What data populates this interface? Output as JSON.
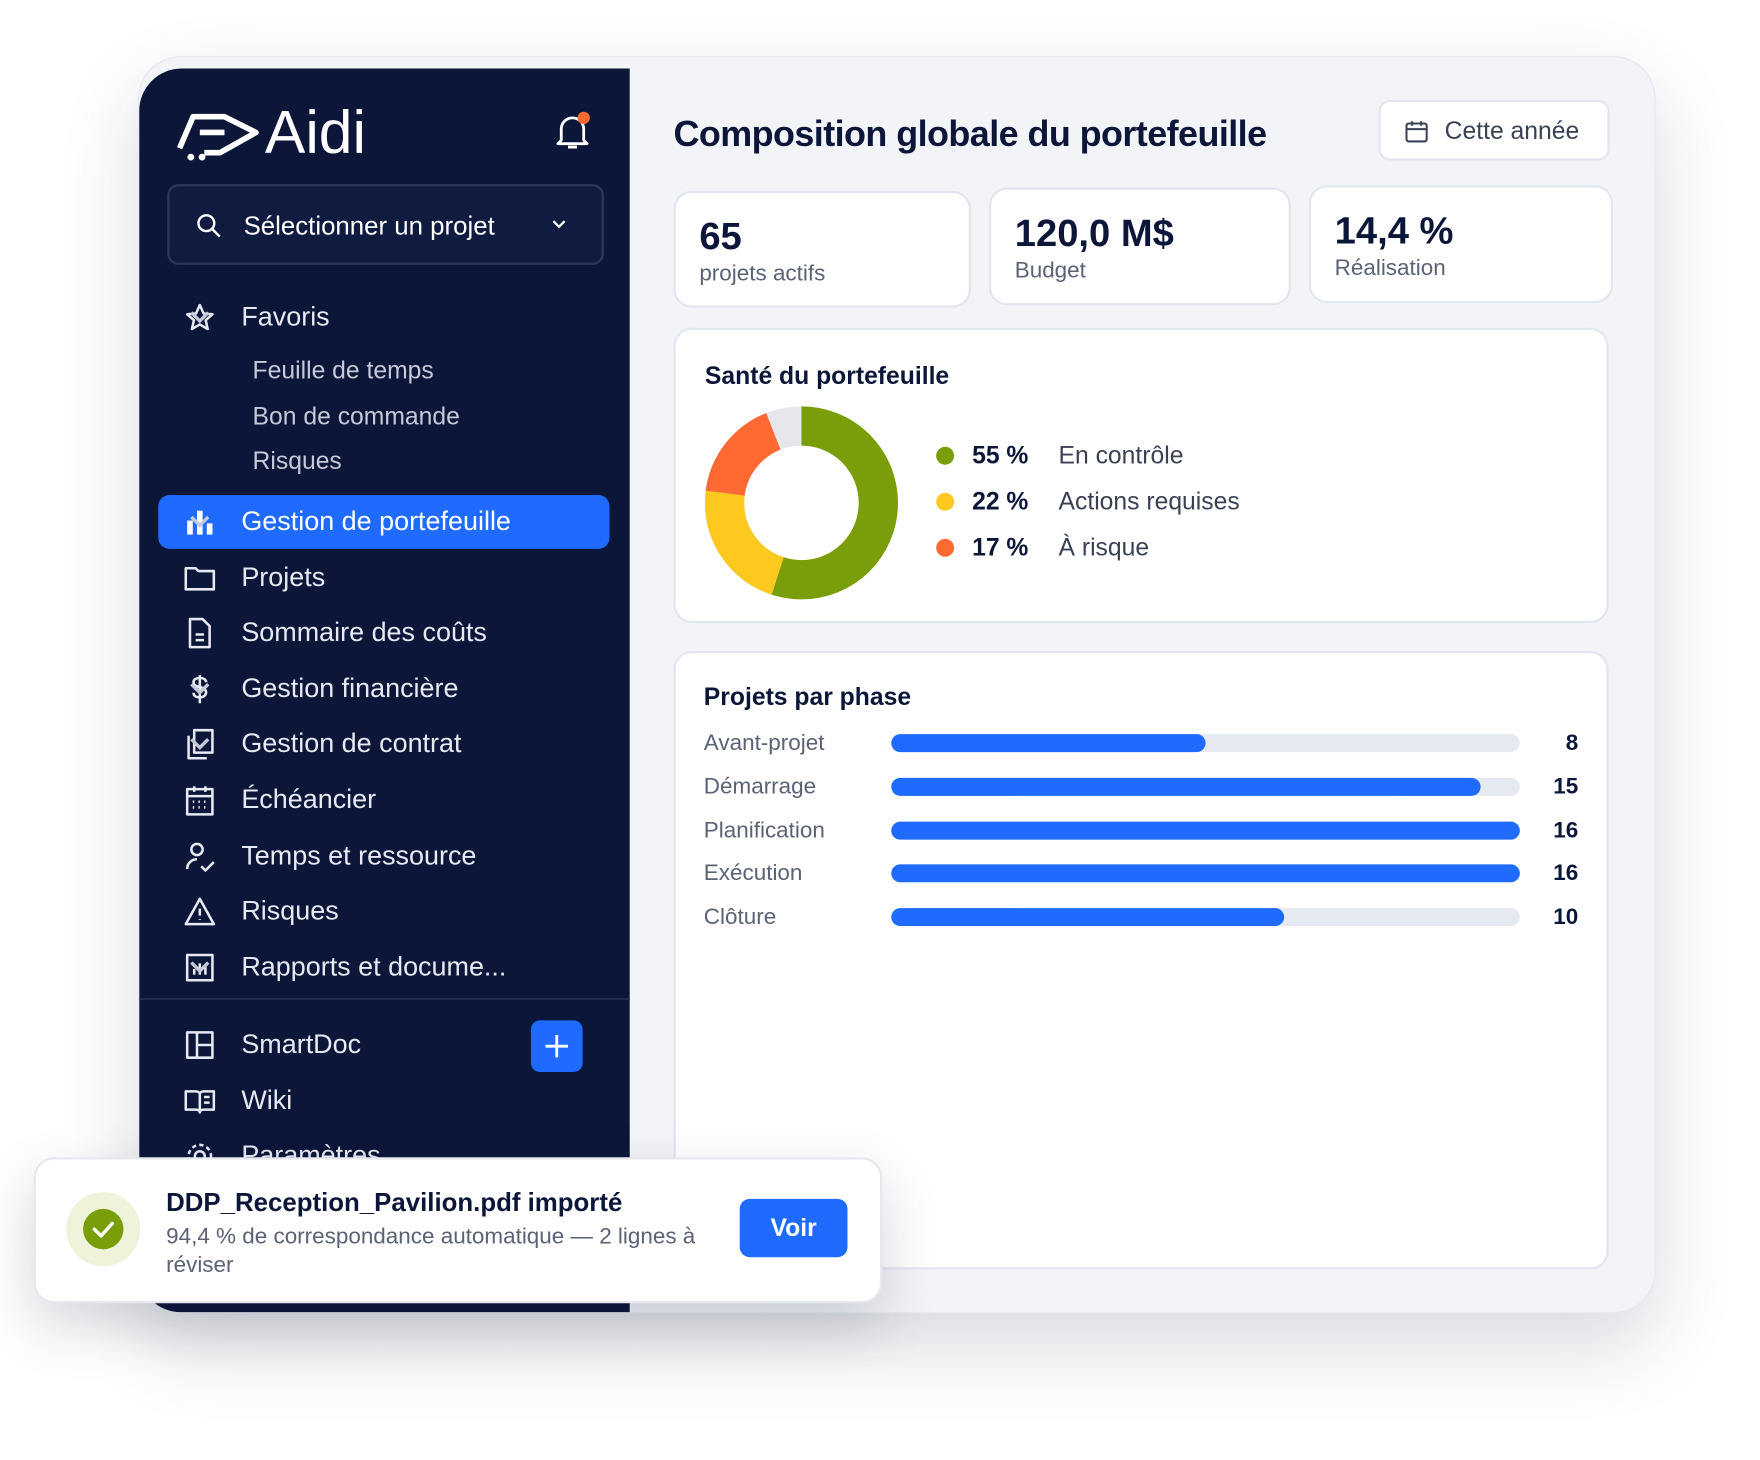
{
  "brand": "Aidi",
  "sidebar": {
    "search": "Sélectionner un projet",
    "favorites": {
      "label": "Favoris",
      "items": [
        "Feuille de temps",
        "Bon de commande",
        "Risques"
      ]
    },
    "nav": [
      "Gestion de portefeuille",
      "Projets",
      "Sommaire des coûts",
      "Gestion financière",
      "Gestion de contrat",
      "Échéancier",
      "Temps et ressource",
      "Risques",
      "Rapports et docume..."
    ],
    "tools": [
      "SmartDoc",
      "Wiki",
      "Paramètres"
    ]
  },
  "header": {
    "title": "Composition globale du portefeuille",
    "period": "Cette année"
  },
  "kpis": [
    {
      "value": "65",
      "label": "projets actifs"
    },
    {
      "value": "120,0 M$",
      "label": "Budget"
    },
    {
      "value": "14,4 %",
      "label": "Réalisation"
    }
  ],
  "health": {
    "title": "Santé du portefeuille",
    "segments": [
      {
        "value": 55,
        "label": "55 %",
        "name": "En contrôle",
        "color": "#7a9e0a"
      },
      {
        "value": 22,
        "label": "22 %",
        "name": "Actions requises",
        "color": "#fdc91f"
      },
      {
        "value": 17,
        "label": "17 %",
        "name": "À risque",
        "color": "#ff6a33"
      }
    ]
  },
  "phases": {
    "title": "Projets par phase",
    "color": "#1f6bff",
    "categories": [
      "Avant-projet",
      "Démarrage",
      "Planification",
      "Exécution",
      "Clôture"
    ],
    "values": [
      8,
      15,
      16,
      16,
      10
    ]
  },
  "toast": {
    "title": "DDP_Reception_Pavilion.pdf importé",
    "message": "94,4 % de correspondance automatique — 2 lignes à réviser",
    "action": "Voir"
  }
}
